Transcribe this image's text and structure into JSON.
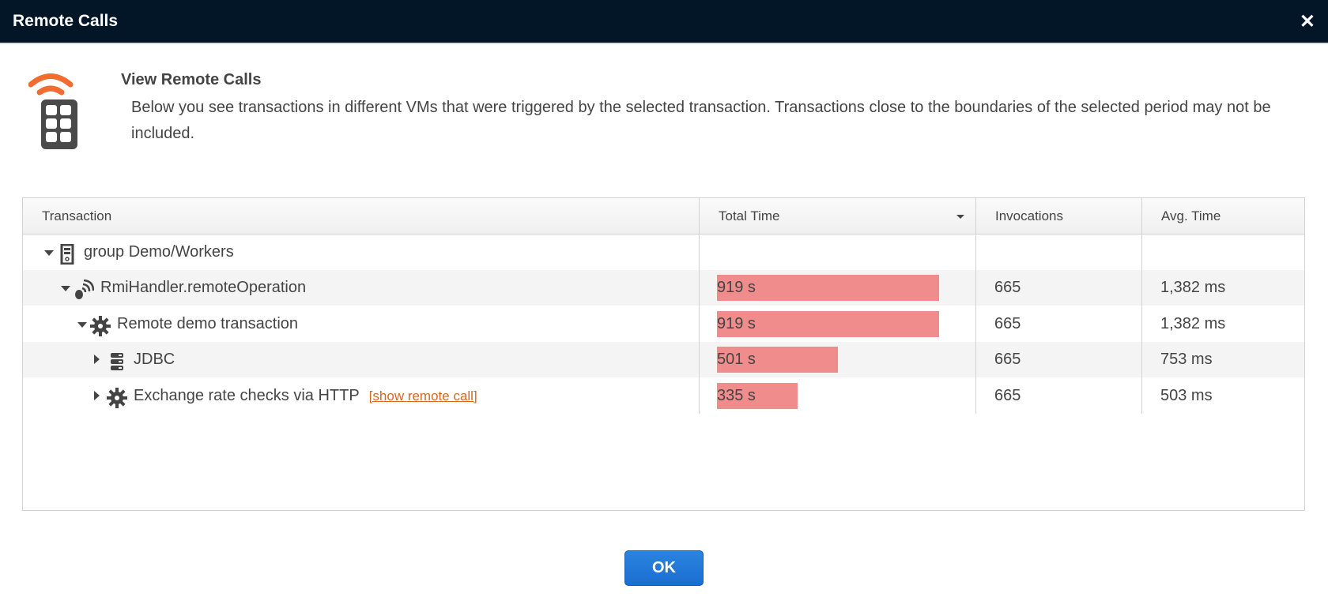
{
  "window": {
    "title": "Remote Calls",
    "close_icon": "close-icon"
  },
  "header": {
    "title": "View Remote Calls",
    "description": "Below you see transactions in different VMs that were triggered by the selected transaction. Transactions close to the boundaries of the selected period may not be included.",
    "icon": "remote-control-icon",
    "accent": "#f26b30"
  },
  "table": {
    "columns": [
      "Transaction",
      "Total Time",
      "Invocations",
      "Avg. Time"
    ],
    "sorted_column": "Total Time",
    "sort_direction": "descending",
    "bar_color": "#f08c8c",
    "bar_max_seconds": 919,
    "rows": [
      {
        "label": "group Demo/Workers",
        "icon": "server-group-icon",
        "expanded": true,
        "level": 0,
        "total": "",
        "total_seconds": null,
        "invocations": "",
        "avg": ""
      },
      {
        "label": "RmiHandler.remoteOperation",
        "icon": "remote-call-icon",
        "expanded": true,
        "level": 1,
        "total": "919 s",
        "total_seconds": 919,
        "invocations": "665",
        "avg": "1,382 ms"
      },
      {
        "label": "Remote demo transaction",
        "icon": "gear-icon",
        "expanded": true,
        "level": 2,
        "total": "919 s",
        "total_seconds": 919,
        "invocations": "665",
        "avg": "1,382 ms"
      },
      {
        "label": "JDBC",
        "icon": "database-icon",
        "expanded": false,
        "level": 3,
        "total": "501 s",
        "total_seconds": 501,
        "invocations": "665",
        "avg": "753 ms"
      },
      {
        "label": "Exchange rate checks via HTTP",
        "icon": "gear-icon",
        "expanded": false,
        "level": 3,
        "total": "335 s",
        "total_seconds": 335,
        "invocations": "665",
        "avg": "503 ms",
        "link": "[show remote call]"
      }
    ]
  },
  "footer": {
    "ok_label": "OK",
    "ok_color": "#1f76d6"
  }
}
